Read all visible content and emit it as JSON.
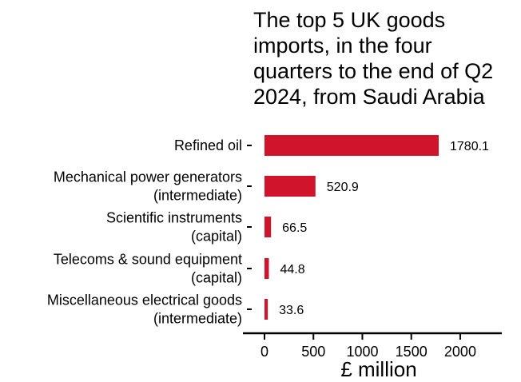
{
  "chart_data": {
    "type": "bar",
    "orientation": "horizontal",
    "title_lines": [
      "The top 5 UK goods",
      "imports, in the four",
      "quarters to the end of Q2",
      "2024, from Saudi Arabia"
    ],
    "categories": [
      [
        "Refined oil"
      ],
      [
        "Mechanical power generators",
        "(intermediate)"
      ],
      [
        "Scientific instruments",
        "(capital)"
      ],
      [
        "Telecoms & sound equipment",
        "(capital)"
      ],
      [
        "Miscellaneous electrical goods",
        "(intermediate)"
      ]
    ],
    "values": [
      1780.1,
      520.9,
      66.5,
      44.8,
      33.6
    ],
    "value_labels": [
      "1780.1",
      "520.9",
      "66.5",
      "44.8",
      "33.6"
    ],
    "xlabel": "£ million",
    "ylabel": "",
    "xlim": [
      0,
      2400
    ],
    "x_ticks": [
      0,
      500,
      1000,
      1500,
      2000
    ],
    "x_tick_labels": [
      "0",
      "500",
      "1000",
      "1500",
      "2000"
    ],
    "bar_color": "#cf142b",
    "grid": false,
    "legend": "none"
  }
}
